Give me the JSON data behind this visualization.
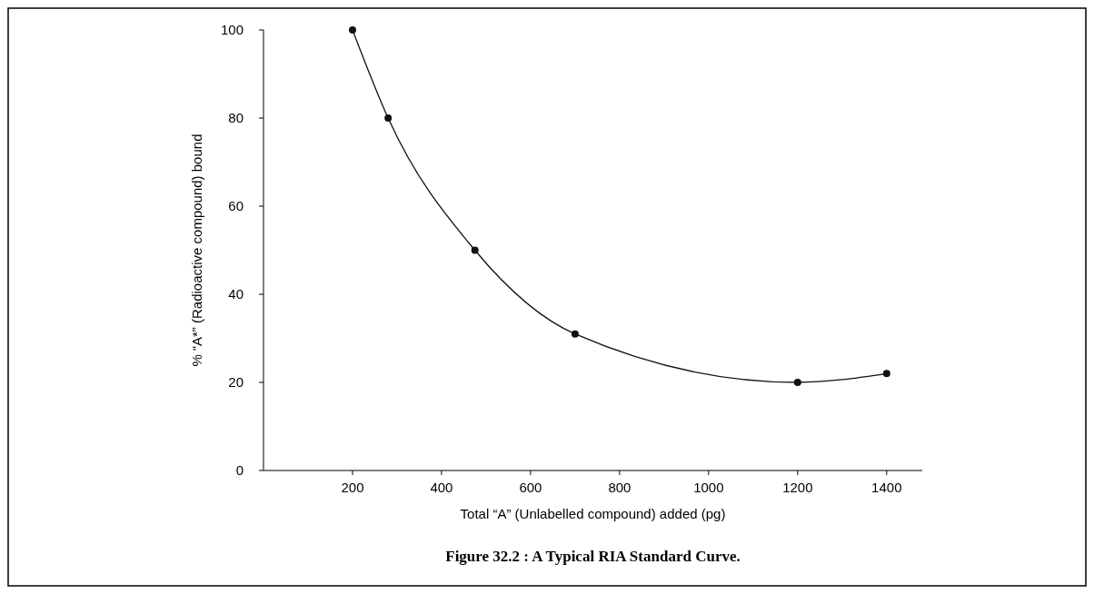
{
  "chart_data": {
    "type": "line",
    "title": "Figure 32.2 : A Typical RIA Standard Curve.",
    "xlabel": "Total “A” (Unlabelled compound) added (pg)",
    "ylabel": "% “A*” (Radioactive compound) bound",
    "x": [
      200,
      280,
      475,
      700,
      1200,
      1400
    ],
    "series": [
      {
        "color": "#111111",
        "values": [
          100,
          80,
          50,
          31,
          20,
          22
        ]
      }
    ],
    "xlim": [
      0,
      1480
    ],
    "xticks": [
      200,
      400,
      600,
      800,
      1000,
      1200,
      1400
    ],
    "ylim": [
      0,
      100
    ],
    "yticks": [
      0,
      20,
      40,
      60,
      80,
      100
    ],
    "grid": false,
    "marker": "circle",
    "line_style": "solid"
  }
}
